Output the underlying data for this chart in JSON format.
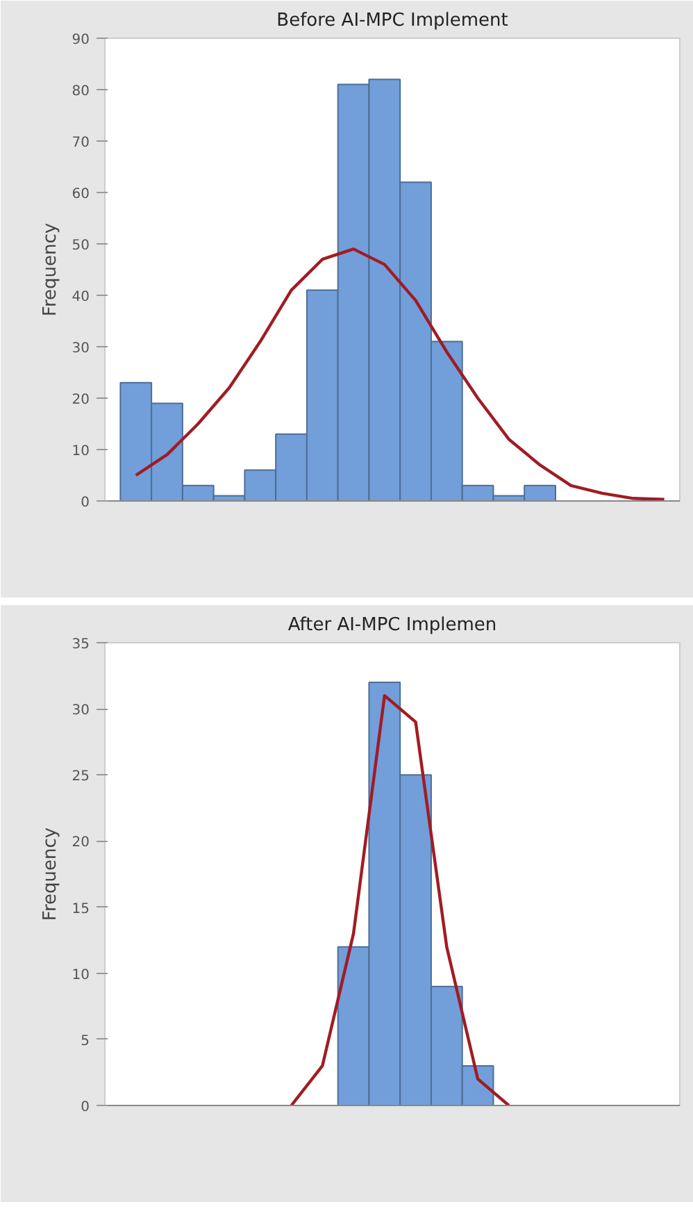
{
  "chart_data": [
    {
      "type": "bar",
      "title": "Before AI-MPC Implement",
      "ylabel": "Frequency",
      "categories": [
        null,
        null,
        null,
        null,
        null,
        null,
        null,
        null,
        null,
        null,
        null,
        null,
        null,
        null,
        null,
        null,
        null,
        null
      ],
      "series": [
        {
          "color": "#729fd9",
          "values": [
            23,
            19,
            3,
            1,
            6,
            13,
            41,
            81,
            82,
            62,
            31,
            3,
            1,
            3,
            null,
            null,
            null,
            null
          ]
        },
        {
          "type": "line",
          "color": "#a01c24",
          "values": [
            5,
            9,
            15,
            22,
            31,
            41,
            47,
            49,
            46,
            39,
            29,
            20,
            12,
            7,
            3,
            1.5,
            0.5,
            0.3
          ]
        }
      ],
      "ylim": [
        0,
        90
      ],
      "yticks": [
        0,
        10,
        20,
        30,
        40,
        50,
        60,
        70,
        80,
        90
      ],
      "tick_labels": "y",
      "grid": false
    },
    {
      "type": "bar",
      "title": "After AI-MPC Implemen",
      "ylabel": "Frequency",
      "categories": [
        null,
        null,
        null,
        null,
        null,
        null,
        null,
        null,
        null,
        null,
        null,
        null,
        null,
        null,
        null,
        null,
        null,
        null
      ],
      "series": [
        {
          "color": "#729fd9",
          "values": [
            null,
            null,
            null,
            null,
            null,
            null,
            null,
            12,
            32,
            25,
            9,
            3,
            null,
            null,
            null,
            null,
            null,
            null
          ]
        },
        {
          "type": "line",
          "color": "#a01c24",
          "values": [
            null,
            null,
            null,
            null,
            null,
            0,
            3,
            13,
            31,
            29,
            12,
            2,
            0,
            null,
            null,
            null,
            null,
            null
          ]
        }
      ],
      "ylim": [
        0,
        35
      ],
      "yticks": [
        0,
        5,
        10,
        15,
        20,
        25,
        30,
        35
      ],
      "tick_labels": "y",
      "grid": false
    }
  ]
}
